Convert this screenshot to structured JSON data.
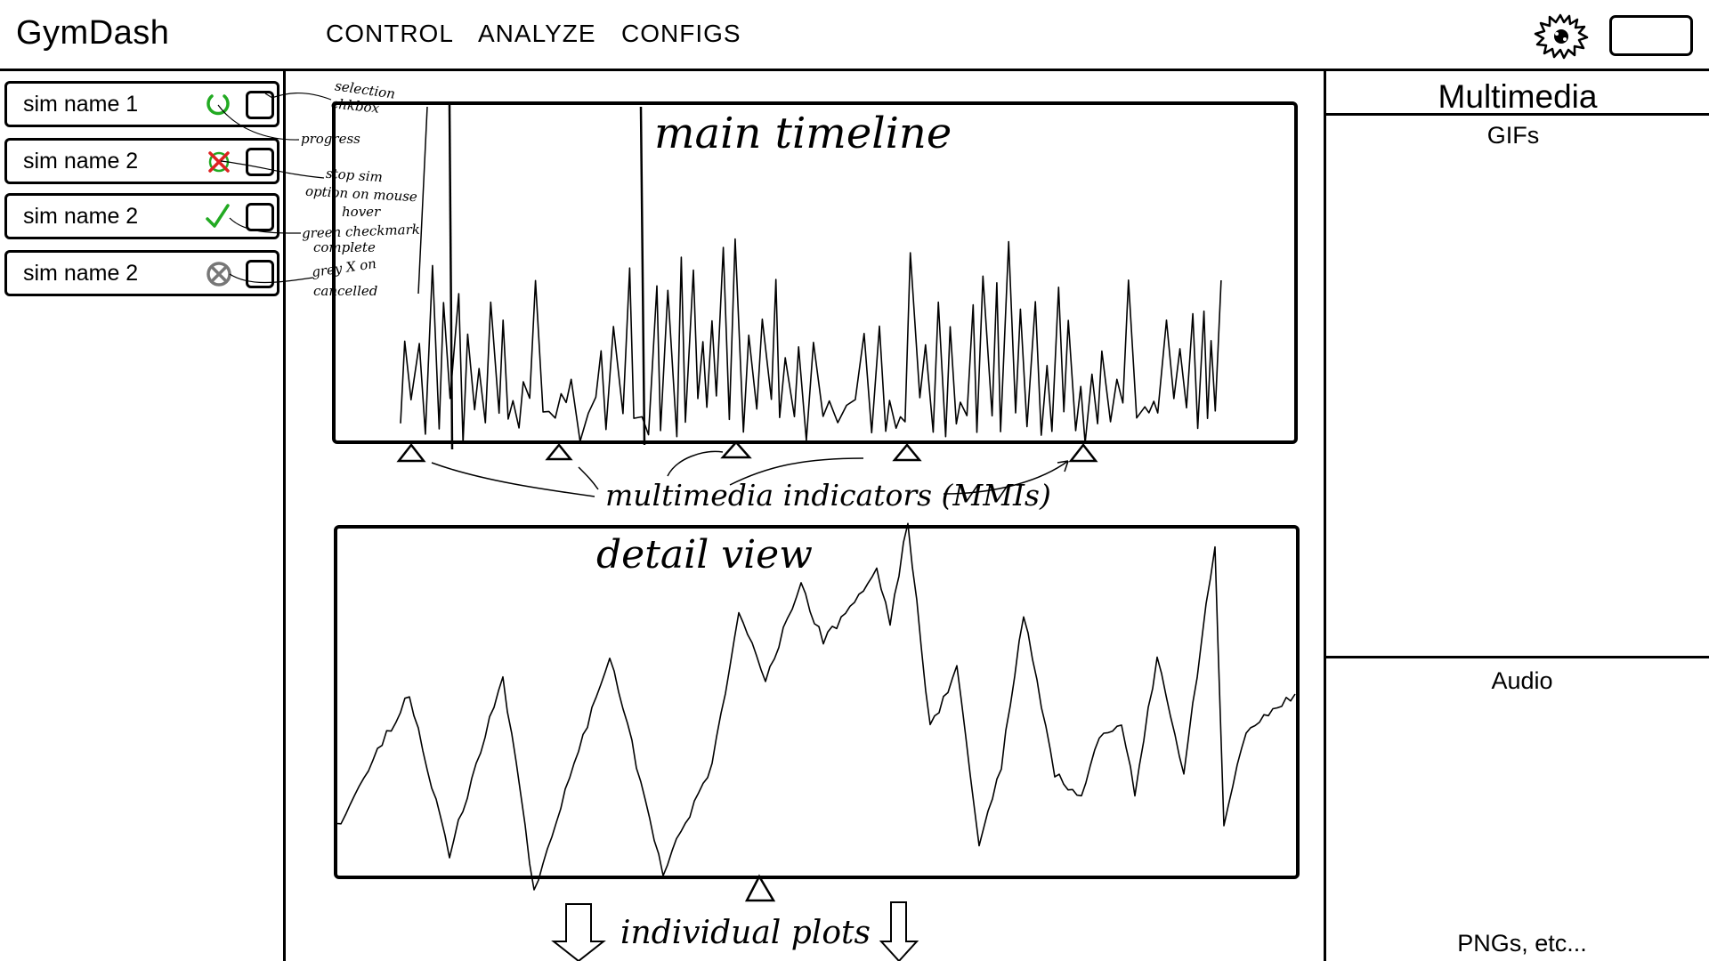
{
  "header": {
    "app_title": "GymDash",
    "nav": [
      "CONTROL",
      "ANALYZE",
      "CONFIGS"
    ],
    "settings_icon": "gear-icon",
    "account_icon": "rounded-rectangle"
  },
  "sidebar": {
    "sims": [
      {
        "name": "sim name 1",
        "status": "in-progress",
        "status_icon": "progress-spinner-icon",
        "status_color": "#22aa22"
      },
      {
        "name": "sim name 2",
        "status": "stop-on-hover",
        "status_icon": "stop-x-icon",
        "status_color": "#dd2222"
      },
      {
        "name": "sim name 2",
        "status": "complete",
        "status_icon": "green-checkmark-icon",
        "status_color": "#22aa22"
      },
      {
        "name": "sim name 2",
        "status": "cancelled",
        "status_icon": "grey-x-circle-icon",
        "status_color": "#777777"
      }
    ],
    "annotations": {
      "selection": "selection",
      "chkbox": "chkbox",
      "progress": "progress",
      "stop_sim": "stop sim",
      "option_on_mouse": "option on mouse",
      "hover": "hover",
      "green_checkmark": "green checkmark",
      "complete": "complete",
      "grey_x_on": "grey X on",
      "cancelled": "cancelled"
    }
  },
  "main": {
    "timeline_label": "main timeline",
    "detail_label": "detail view",
    "mmi_label": "multimedia indicators (MMIs)",
    "plots_label": "individual plots"
  },
  "multimedia": {
    "title": "Multimedia",
    "gifs": "GIFs",
    "audio": "Audio",
    "pngs": "PNGs, etc..."
  }
}
